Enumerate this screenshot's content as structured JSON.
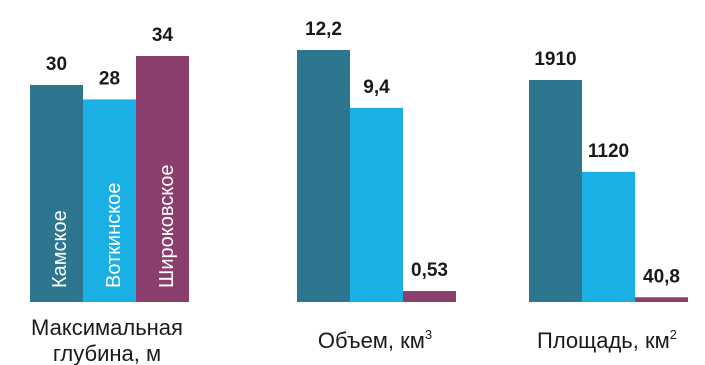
{
  "colors": {
    "series_1": "#2e7590",
    "series_2": "#1ab0e6",
    "series_3": "#8a3f6d"
  },
  "chart_data": [
    {
      "type": "bar",
      "categories": [
        "Камское",
        "Воткинское",
        "Широковское"
      ],
      "values": [
        30,
        28,
        34
      ],
      "value_labels": [
        "30",
        "28",
        "34"
      ],
      "xlabel": "Максимальная глубина, м",
      "xlabel_lines": [
        "Максимальная",
        "глубина, м"
      ],
      "ylim": [
        0,
        34
      ]
    },
    {
      "type": "bar",
      "categories": [
        "Камское",
        "Воткинское",
        "Широковское"
      ],
      "values": [
        12.2,
        9.4,
        0.53
      ],
      "value_labels": [
        "12,2",
        "9,4",
        "0,53"
      ],
      "xlabel": "Объем, км³",
      "xlabel_main": "Объем, км",
      "xlabel_sup": "3",
      "ylim": [
        0,
        12.2
      ]
    },
    {
      "type": "bar",
      "categories": [
        "Камское",
        "Воткинское",
        "Широковское"
      ],
      "values": [
        1910,
        1120,
        40.8
      ],
      "value_labels": [
        "1910",
        "1120",
        "40,8"
      ],
      "xlabel": "Площадь, км²",
      "xlabel_main": "Площадь, км",
      "xlabel_sup": "2",
      "ylim": [
        0,
        1910
      ]
    }
  ]
}
